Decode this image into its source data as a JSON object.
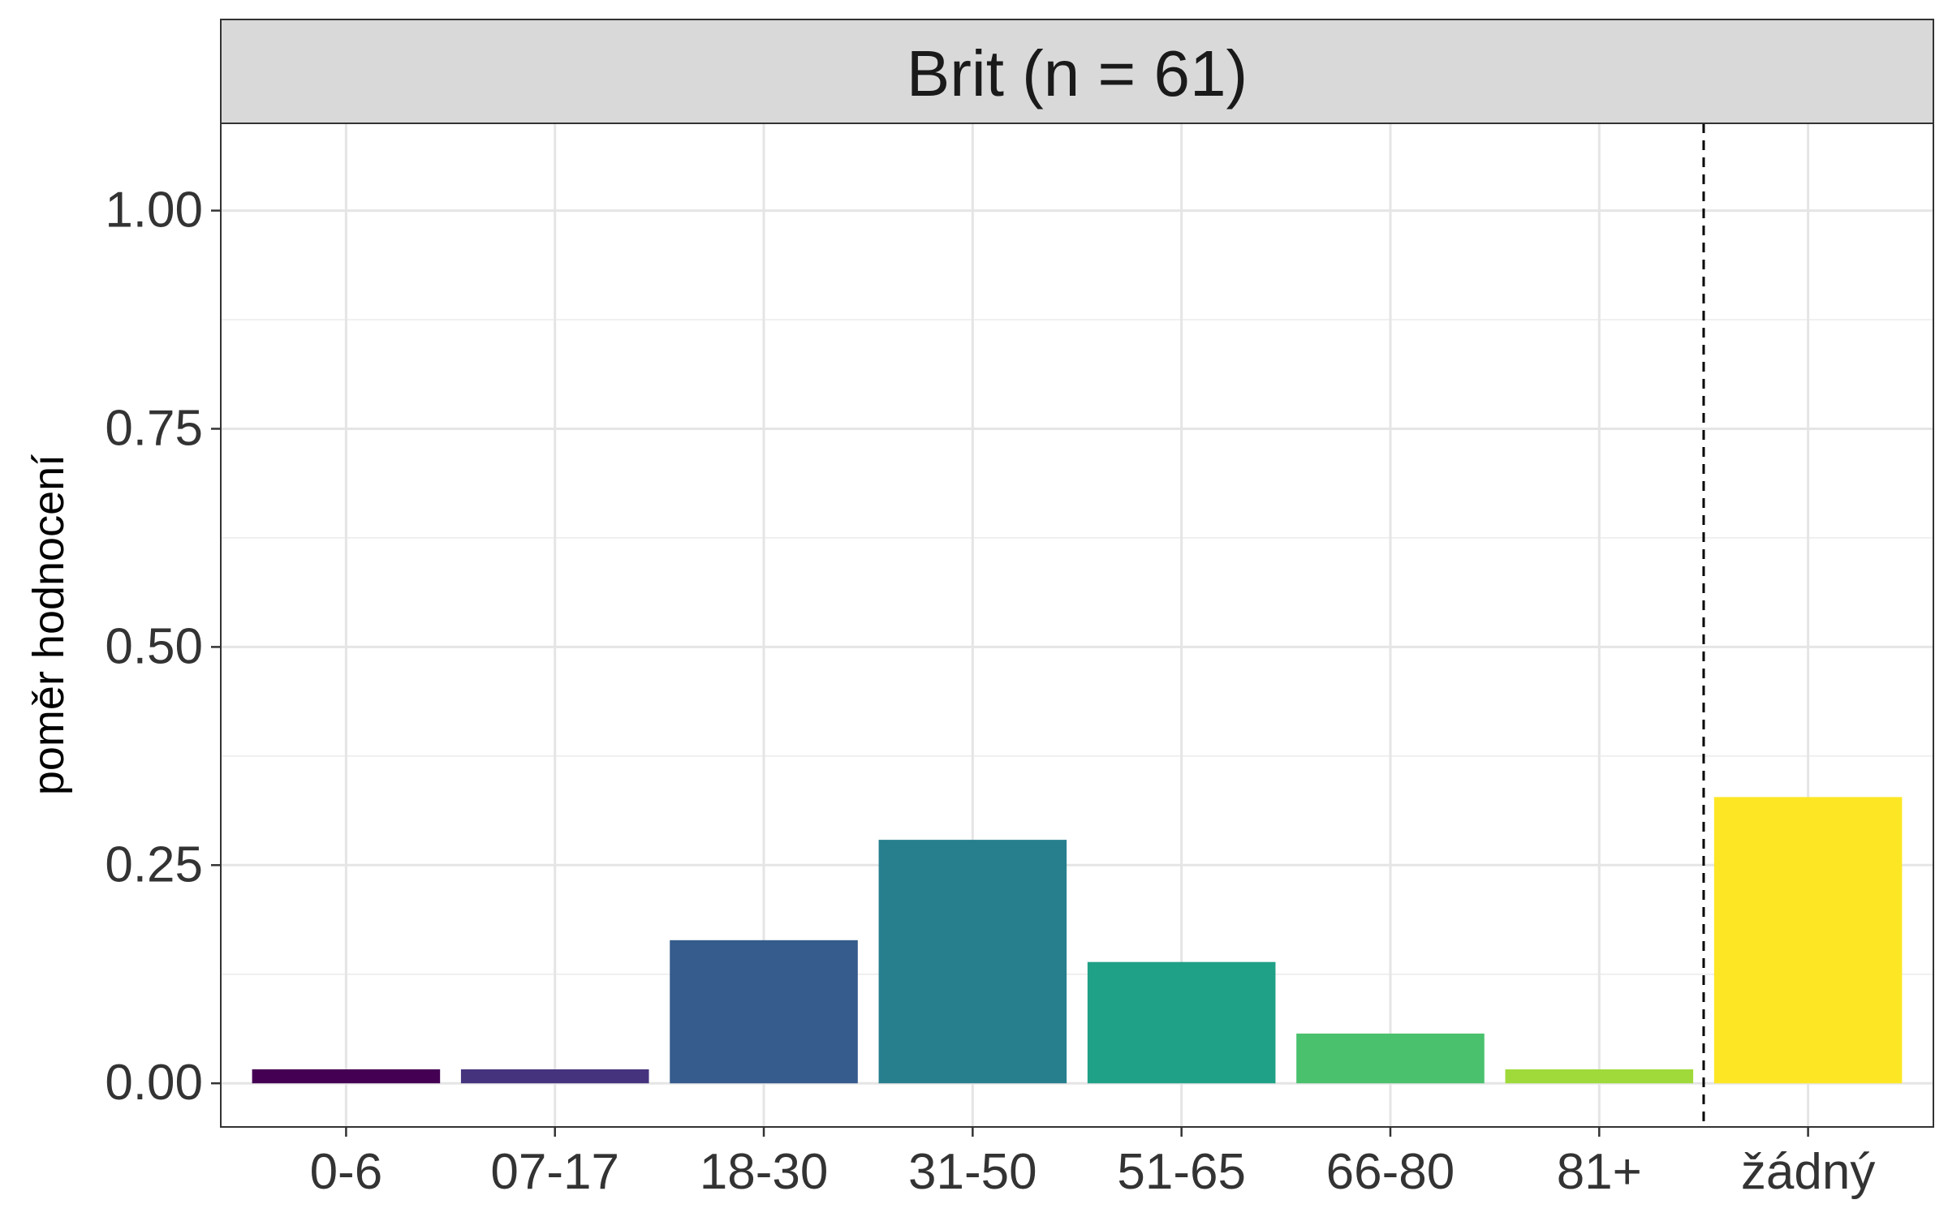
{
  "chart_data": {
    "type": "bar",
    "panel_title": "Brit (n = 61)",
    "ylabel": "poměr hodnocení",
    "xlabel": "",
    "ylim": [
      -0.05,
      1.1
    ],
    "yticks": [
      0,
      0.25,
      0.5,
      0.75,
      1.0
    ],
    "ytick_labels": [
      "0.00",
      "0.25",
      "0.50",
      "0.75",
      "1.00"
    ],
    "categories": [
      "0-6",
      "07-17",
      "18-30",
      "31-50",
      "51-65",
      "66-80",
      "81+",
      "žádný"
    ],
    "values": [
      0.016,
      0.016,
      0.164,
      0.279,
      0.139,
      0.057,
      0.016,
      0.328
    ],
    "colors": [
      "#440154",
      "#46337E",
      "#365C8D",
      "#277F8E",
      "#1FA187",
      "#4AC16D",
      "#9FDA3A",
      "#FDE725"
    ],
    "separator_after_index": 6,
    "grid": true,
    "strip_color": "#D9D9D9"
  }
}
